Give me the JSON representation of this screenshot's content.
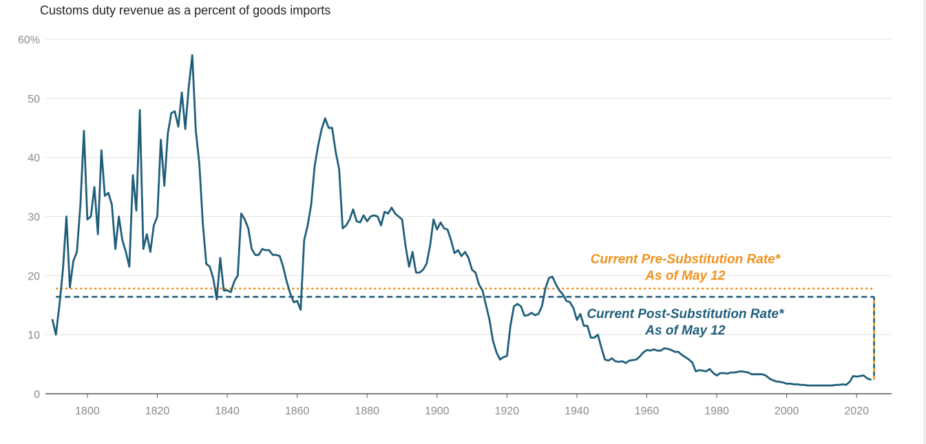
{
  "colors": {
    "series": "#1f5e7a",
    "pre_rate": "#f0921e",
    "post_rate": "#1f5e7a",
    "grid": "#e3e3e3",
    "axis": "#555555",
    "tick_text": "#8a8a8a"
  },
  "chart_data": {
    "type": "line",
    "title": "Customs duty revenue as a percent of goods imports",
    "xlabel": "",
    "ylabel": "",
    "xlim": [
      1788,
      2030
    ],
    "ylim": [
      0,
      60
    ],
    "grid": true,
    "x_ticks": [
      {
        "value": 1800,
        "label": "1800"
      },
      {
        "value": 1820,
        "label": "1820"
      },
      {
        "value": 1840,
        "label": "1840"
      },
      {
        "value": 1860,
        "label": "1860"
      },
      {
        "value": 1880,
        "label": "1880"
      },
      {
        "value": 1900,
        "label": "1900"
      },
      {
        "value": 1920,
        "label": "1920"
      },
      {
        "value": 1940,
        "label": "1940"
      },
      {
        "value": 1960,
        "label": "1960"
      },
      {
        "value": 1980,
        "label": "1980"
      },
      {
        "value": 2000,
        "label": "2000"
      },
      {
        "value": 2020,
        "label": "2020"
      }
    ],
    "y_ticks": [
      {
        "value": 0,
        "label": "0"
      },
      {
        "value": 10,
        "label": "10"
      },
      {
        "value": 20,
        "label": "20"
      },
      {
        "value": 30,
        "label": "30"
      },
      {
        "value": 40,
        "label": "40"
      },
      {
        "value": 50,
        "label": "50"
      },
      {
        "value": 60,
        "label": "60%"
      }
    ],
    "series": [
      {
        "color": "#1f5e7a",
        "points": [
          [
            1790,
            12.5
          ],
          [
            1791,
            10
          ],
          [
            1792,
            15
          ],
          [
            1793,
            21
          ],
          [
            1794,
            30
          ],
          [
            1795,
            18
          ],
          [
            1796,
            22.5
          ],
          [
            1797,
            24
          ],
          [
            1798,
            32
          ],
          [
            1799,
            44.5
          ],
          [
            1800,
            29.5
          ],
          [
            1801,
            30
          ],
          [
            1802,
            35
          ],
          [
            1803,
            27
          ],
          [
            1804,
            41.2
          ],
          [
            1805,
            33.5
          ],
          [
            1806,
            34
          ],
          [
            1807,
            32
          ],
          [
            1808,
            24.5
          ],
          [
            1809,
            30
          ],
          [
            1810,
            26
          ],
          [
            1811,
            24
          ],
          [
            1812,
            21.5
          ],
          [
            1813,
            37
          ],
          [
            1814,
            31
          ],
          [
            1815,
            48
          ],
          [
            1816,
            24.5
          ],
          [
            1817,
            27
          ],
          [
            1818,
            24
          ],
          [
            1819,
            28.5
          ],
          [
            1820,
            30
          ],
          [
            1821,
            43
          ],
          [
            1822,
            35.2
          ],
          [
            1823,
            44
          ],
          [
            1824,
            47.5
          ],
          [
            1825,
            47.8
          ],
          [
            1826,
            45.2
          ],
          [
            1827,
            51
          ],
          [
            1828,
            44.8
          ],
          [
            1829,
            52
          ],
          [
            1830,
            57.3
          ],
          [
            1831,
            44.5
          ],
          [
            1832,
            39
          ],
          [
            1833,
            29
          ],
          [
            1834,
            22
          ],
          [
            1835,
            21.5
          ],
          [
            1836,
            19.5
          ],
          [
            1837,
            16
          ],
          [
            1838,
            23
          ],
          [
            1839,
            17.5
          ],
          [
            1840,
            17.5
          ],
          [
            1841,
            17.2
          ],
          [
            1842,
            19
          ],
          [
            1843,
            20
          ],
          [
            1844,
            30.5
          ],
          [
            1845,
            29.5
          ],
          [
            1846,
            28
          ],
          [
            1847,
            24.5
          ],
          [
            1848,
            23.5
          ],
          [
            1849,
            23.5
          ],
          [
            1850,
            24.5
          ],
          [
            1851,
            24.3
          ],
          [
            1852,
            24.3
          ],
          [
            1853,
            23.5
          ],
          [
            1854,
            23.5
          ],
          [
            1855,
            23.3
          ],
          [
            1856,
            21.5
          ],
          [
            1857,
            19
          ],
          [
            1858,
            17
          ],
          [
            1859,
            15.5
          ],
          [
            1860,
            15.7
          ],
          [
            1861,
            14.2
          ],
          [
            1862,
            26
          ],
          [
            1863,
            28.5
          ],
          [
            1864,
            32
          ],
          [
            1865,
            38.5
          ],
          [
            1866,
            42
          ],
          [
            1867,
            44.8
          ],
          [
            1868,
            46.6
          ],
          [
            1869,
            45
          ],
          [
            1870,
            45
          ],
          [
            1871,
            41
          ],
          [
            1872,
            38
          ],
          [
            1873,
            28
          ],
          [
            1874,
            28.5
          ],
          [
            1875,
            29.5
          ],
          [
            1876,
            31.2
          ],
          [
            1877,
            29.2
          ],
          [
            1878,
            29
          ],
          [
            1879,
            30.2
          ],
          [
            1880,
            29.2
          ],
          [
            1881,
            30
          ],
          [
            1882,
            30.2
          ],
          [
            1883,
            30
          ],
          [
            1884,
            28.5
          ],
          [
            1885,
            30.8
          ],
          [
            1886,
            30.5
          ],
          [
            1887,
            31.5
          ],
          [
            1888,
            30.5
          ],
          [
            1889,
            30
          ],
          [
            1890,
            29.5
          ],
          [
            1891,
            25
          ],
          [
            1892,
            21.5
          ],
          [
            1893,
            24
          ],
          [
            1894,
            20.5
          ],
          [
            1895,
            20.5
          ],
          [
            1896,
            21
          ],
          [
            1897,
            22
          ],
          [
            1898,
            25
          ],
          [
            1899,
            29.5
          ],
          [
            1900,
            27.8
          ],
          [
            1901,
            29
          ],
          [
            1902,
            28
          ],
          [
            1903,
            27.8
          ],
          [
            1904,
            26
          ],
          [
            1905,
            23.8
          ],
          [
            1906,
            24.3
          ],
          [
            1907,
            23.3
          ],
          [
            1908,
            24
          ],
          [
            1909,
            23
          ],
          [
            1910,
            21
          ],
          [
            1911,
            20.5
          ],
          [
            1912,
            18.5
          ],
          [
            1913,
            17.5
          ],
          [
            1914,
            15
          ],
          [
            1915,
            12.5
          ],
          [
            1916,
            9
          ],
          [
            1917,
            7
          ],
          [
            1918,
            5.8
          ],
          [
            1919,
            6.2
          ],
          [
            1920,
            6.4
          ],
          [
            1921,
            11.5
          ],
          [
            1922,
            14.8
          ],
          [
            1923,
            15.2
          ],
          [
            1924,
            14.8
          ],
          [
            1925,
            13.2
          ],
          [
            1926,
            13.3
          ],
          [
            1927,
            13.7
          ],
          [
            1928,
            13.3
          ],
          [
            1929,
            13.5
          ],
          [
            1930,
            14.8
          ],
          [
            1931,
            17.8
          ],
          [
            1932,
            19.6
          ],
          [
            1933,
            19.8
          ],
          [
            1934,
            18.5
          ],
          [
            1935,
            17.5
          ],
          [
            1936,
            16.8
          ],
          [
            1937,
            15.7
          ],
          [
            1938,
            15.5
          ],
          [
            1939,
            14.5
          ],
          [
            1940,
            12.5
          ],
          [
            1941,
            13.5
          ],
          [
            1942,
            11.5
          ],
          [
            1943,
            11.5
          ],
          [
            1944,
            9.5
          ],
          [
            1945,
            9.5
          ],
          [
            1946,
            10
          ],
          [
            1947,
            7.8
          ],
          [
            1948,
            5.8
          ],
          [
            1949,
            5.6
          ],
          [
            1950,
            6
          ],
          [
            1951,
            5.5
          ],
          [
            1952,
            5.4
          ],
          [
            1953,
            5.5
          ],
          [
            1954,
            5.2
          ],
          [
            1955,
            5.6
          ],
          [
            1956,
            5.7
          ],
          [
            1957,
            5.8
          ],
          [
            1958,
            6.3
          ],
          [
            1959,
            7
          ],
          [
            1960,
            7.4
          ],
          [
            1961,
            7.3
          ],
          [
            1962,
            7.5
          ],
          [
            1963,
            7.3
          ],
          [
            1964,
            7.3
          ],
          [
            1965,
            7.7
          ],
          [
            1966,
            7.6
          ],
          [
            1967,
            7.4
          ],
          [
            1968,
            7.1
          ],
          [
            1969,
            7.1
          ],
          [
            1970,
            6.6
          ],
          [
            1971,
            6.2
          ],
          [
            1972,
            5.8
          ],
          [
            1973,
            5.3
          ],
          [
            1974,
            3.8
          ],
          [
            1975,
            4
          ],
          [
            1976,
            3.9
          ],
          [
            1977,
            3.8
          ],
          [
            1978,
            4.2
          ],
          [
            1979,
            3.5
          ],
          [
            1980,
            3.1
          ],
          [
            1981,
            3.5
          ],
          [
            1982,
            3.5
          ],
          [
            1983,
            3.4
          ],
          [
            1984,
            3.6
          ],
          [
            1985,
            3.6
          ],
          [
            1986,
            3.7
          ],
          [
            1987,
            3.8
          ],
          [
            1988,
            3.7
          ],
          [
            1989,
            3.6
          ],
          [
            1990,
            3.3
          ],
          [
            1991,
            3.3
          ],
          [
            1992,
            3.3
          ],
          [
            1993,
            3.3
          ],
          [
            1994,
            3.1
          ],
          [
            1995,
            2.6
          ],
          [
            1996,
            2.3
          ],
          [
            1997,
            2.1
          ],
          [
            1998,
            2
          ],
          [
            1999,
            1.9
          ],
          [
            2000,
            1.7
          ],
          [
            2001,
            1.7
          ],
          [
            2002,
            1.6
          ],
          [
            2003,
            1.6
          ],
          [
            2004,
            1.5
          ],
          [
            2005,
            1.5
          ],
          [
            2006,
            1.4
          ],
          [
            2007,
            1.4
          ],
          [
            2008,
            1.4
          ],
          [
            2009,
            1.4
          ],
          [
            2010,
            1.4
          ],
          [
            2011,
            1.4
          ],
          [
            2012,
            1.4
          ],
          [
            2013,
            1.4
          ],
          [
            2014,
            1.5
          ],
          [
            2015,
            1.5
          ],
          [
            2016,
            1.6
          ],
          [
            2017,
            1.5
          ],
          [
            2018,
            2
          ],
          [
            2019,
            3
          ],
          [
            2020,
            2.9
          ],
          [
            2021,
            3
          ],
          [
            2022,
            3.1
          ],
          [
            2023,
            2.6
          ],
          [
            2024,
            2.4
          ]
        ]
      }
    ],
    "reference_lines": [
      {
        "value": 17.8,
        "style": "dotted",
        "color": "#f0921e",
        "x_from": 1791,
        "x_to": 2025
      },
      {
        "value": 16.4,
        "style": "dashed",
        "color": "#1f5e7a",
        "x_from": 1791,
        "x_to": 2025
      }
    ],
    "connector": {
      "x": 2025,
      "y_from": 2.4,
      "y_to": 16.4
    },
    "annotations": [
      {
        "lines": [
          "Current Pre-Substitution Rate*",
          "As of May 12"
        ],
        "color": "#f0921e",
        "x": 1971,
        "y": 22.1
      },
      {
        "lines": [
          "Current Post-Substitution Rate*",
          "As of May 12"
        ],
        "color": "#1f5e7a",
        "x": 1971,
        "y": 12.8
      }
    ]
  }
}
